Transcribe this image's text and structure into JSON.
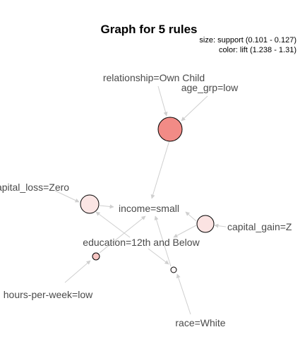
{
  "graph": {
    "title": "Graph for 5 rules",
    "legend": {
      "size_line": "size: support (0.101 - 0.127)",
      "color_line": "color: lift (1.238 - 1.31)"
    },
    "items": [
      {
        "id": "relationship",
        "label": "relationship=Own Child"
      },
      {
        "id": "age_grp",
        "label": "age_grp=low"
      },
      {
        "id": "capital_loss",
        "label": "capital_loss=Zero"
      },
      {
        "id": "income",
        "label": "income=small"
      },
      {
        "id": "capital_gain",
        "label": "capital_gain=Z"
      },
      {
        "id": "education",
        "label": "education=12th and Below"
      },
      {
        "id": "hours",
        "label": "hours-per-week=low"
      },
      {
        "id": "race",
        "label": "race=White"
      }
    ],
    "rules": [
      {
        "id": "rule1",
        "color": "#f28b86"
      },
      {
        "id": "rule2",
        "color": "#fbe5e4"
      },
      {
        "id": "rule3",
        "color": "#fbe3e2"
      },
      {
        "id": "rule4",
        "color": "#f6c5c2"
      },
      {
        "id": "rule5",
        "color": "#fff7f7"
      }
    ],
    "edge_color": "#cfcfcf"
  }
}
